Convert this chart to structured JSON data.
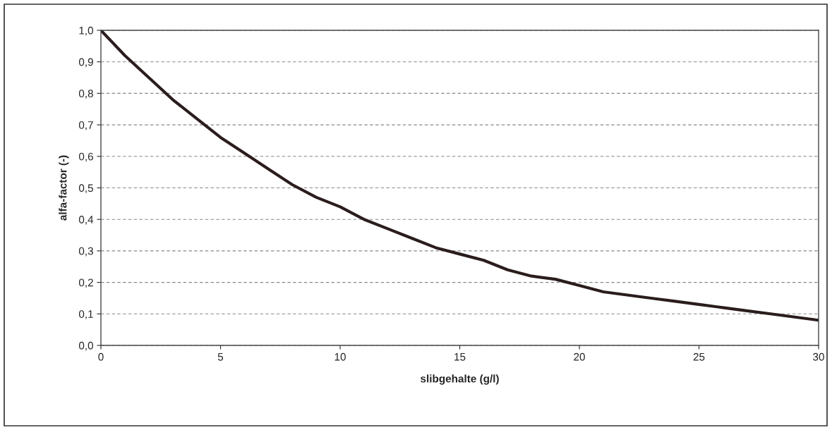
{
  "chart_data": {
    "type": "line",
    "xlabel": "slibgehalte (g/l)",
    "ylabel": "alfa-factor (-)",
    "x": [
      0,
      1,
      2,
      3,
      4,
      5,
      6,
      7,
      8,
      9,
      10,
      11,
      12,
      13,
      14,
      15,
      16,
      17,
      18,
      19,
      20,
      21,
      22,
      23,
      24,
      25,
      26,
      27,
      28,
      29,
      30
    ],
    "series": [
      {
        "color": "#2b1d1d",
        "values": [
          1.0,
          0.92,
          0.85,
          0.78,
          0.72,
          0.66,
          0.61,
          0.56,
          0.51,
          0.47,
          0.44,
          0.4,
          0.37,
          0.34,
          0.31,
          0.29,
          0.27,
          0.24,
          0.22,
          0.21,
          0.19,
          0.17,
          0.16,
          0.15,
          0.14,
          0.13,
          0.12,
          0.11,
          0.1,
          0.09,
          0.08
        ]
      }
    ],
    "xlim": [
      0,
      30
    ],
    "xticks": [
      0,
      5,
      10,
      15,
      20,
      25,
      30
    ],
    "ylim": [
      0,
      1
    ],
    "yticks": [
      {
        "value": 0,
        "label": "0,0"
      },
      {
        "value": 0.1,
        "label": "0,1"
      },
      {
        "value": 0.2,
        "label": "0,2"
      },
      {
        "value": 0.3,
        "label": "0,3"
      },
      {
        "value": 0.4,
        "label": "0,4"
      },
      {
        "value": 0.5,
        "label": "0,5"
      },
      {
        "value": 0.6,
        "label": "0,6"
      },
      {
        "value": 0.7,
        "label": "0,7"
      },
      {
        "value": 0.8,
        "label": "0,8"
      },
      {
        "value": 0.9,
        "label": "0,9"
      },
      {
        "value": 1,
        "label": "1,0"
      }
    ],
    "grid": "y",
    "marker": "none",
    "line_style": "solid"
  }
}
